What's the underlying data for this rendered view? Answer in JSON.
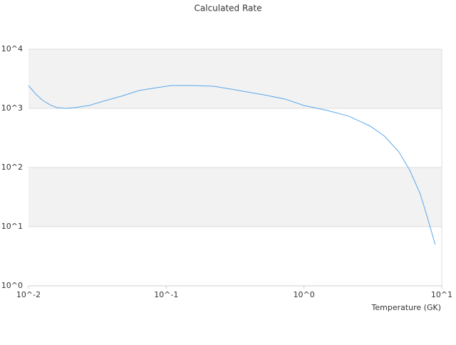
{
  "chart_data": {
    "type": "line",
    "title": "Calculated Rate",
    "x_label": "Temperature (GK)",
    "x_scale": "log",
    "y_scale": "log",
    "xlim": [
      0.01,
      10
    ],
    "ylim": [
      1,
      10000
    ],
    "xticks": [
      {
        "value": 0.01,
        "label": "10^-2"
      },
      {
        "value": 0.1,
        "label": "10^-1"
      },
      {
        "value": 1,
        "label": "10^0"
      },
      {
        "value": 10,
        "label": "10^1"
      }
    ],
    "yticks": [
      {
        "value": 1,
        "label": "10^0"
      },
      {
        "value": 10,
        "label": "10^1"
      },
      {
        "value": 100,
        "label": "10^2"
      },
      {
        "value": 1000,
        "label": "10^3"
      },
      {
        "value": 10000,
        "label": "10^4"
      }
    ],
    "band_color": "#f2f2f2",
    "series": [
      {
        "color": "#5aa7e8",
        "x": [
          0.01,
          0.0113,
          0.0127,
          0.0143,
          0.0161,
          0.0186,
          0.0217,
          0.0275,
          0.0349,
          0.0471,
          0.0634,
          0.0854,
          0.108,
          0.155,
          0.221,
          0.316,
          0.509,
          0.728,
          1.0,
          1.48,
          2.12,
          3.03,
          3.84,
          4.88,
          5.83,
          6.98,
          7.86,
          8.96
        ],
        "values": [
          2430,
          1740,
          1357,
          1150,
          1028,
          1000,
          1028,
          1117,
          1320,
          1603,
          2000,
          2234,
          2430,
          2430,
          2363,
          2056,
          1694,
          1436,
          1117,
          920,
          736,
          500,
          339,
          184,
          92,
          35.8,
          14.4,
          5.0
        ]
      }
    ]
  }
}
